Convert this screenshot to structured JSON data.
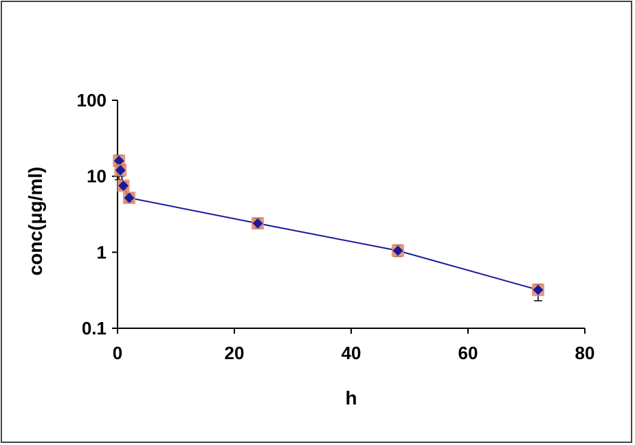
{
  "chart_data": {
    "type": "scatter",
    "title": "",
    "xlabel": "h",
    "ylabel": "conc(μg/ml)",
    "xlim": [
      0,
      80
    ],
    "ylim": [
      0.1,
      100
    ],
    "yscale": "log",
    "grid": false,
    "legend": "none",
    "x_ticks": [
      {
        "value": 0,
        "label": "0"
      },
      {
        "value": 20,
        "label": "20"
      },
      {
        "value": 40,
        "label": "40"
      },
      {
        "value": 60,
        "label": "60"
      },
      {
        "value": 80,
        "label": "80"
      }
    ],
    "y_ticks": [
      {
        "value": 0.1,
        "label": "0.1"
      },
      {
        "value": 1,
        "label": "1"
      },
      {
        "value": 10,
        "label": "10"
      },
      {
        "value": 100,
        "label": "100"
      }
    ],
    "series": [
      {
        "x": [
          0.25,
          0.5,
          1,
          2,
          24,
          48,
          72
        ],
        "y": [
          16,
          12,
          7.5,
          5.2,
          2.4,
          1.05,
          0.32
        ],
        "error_upper": [
          19,
          14,
          8.3,
          5.9,
          2.8,
          1.25,
          0.38
        ],
        "error_lower": [
          9,
          10,
          6.8,
          4.6,
          2.1,
          0.88,
          0.23
        ],
        "line": "solid",
        "marker": "diamond"
      }
    ],
    "colors": {
      "line": "#1a1a9c",
      "marker": "#1a1a9c",
      "marker_halo": "#e08a6a",
      "error_bar": "#000000",
      "axis": "#000000"
    }
  }
}
